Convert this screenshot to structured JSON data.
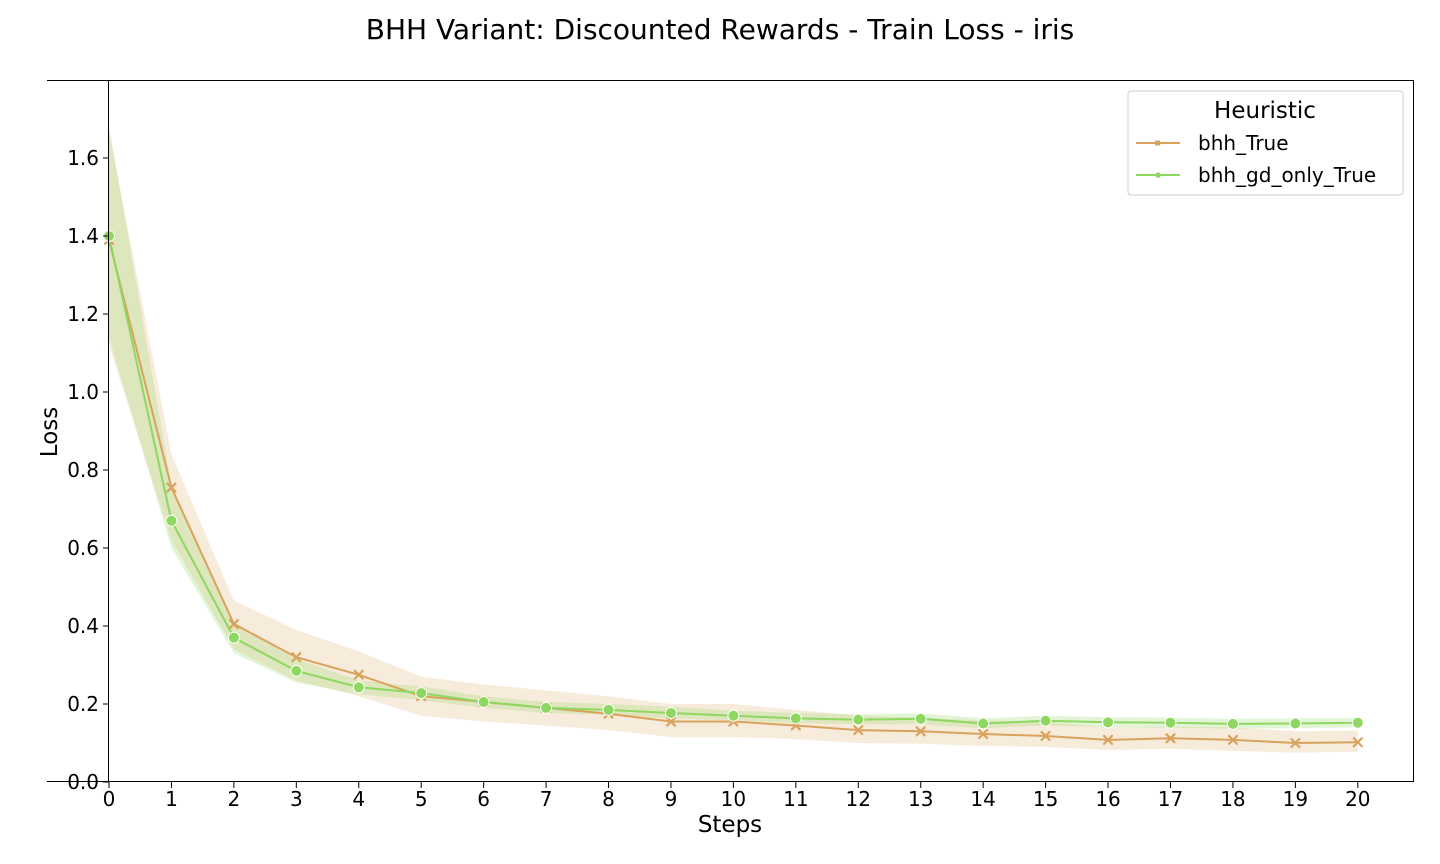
{
  "chart_data": {
    "type": "line",
    "title": "BHH Variant: Discounted Rewards - Train Loss - iris",
    "xlabel": "Steps",
    "ylabel": "Loss",
    "x": [
      0,
      1,
      2,
      3,
      4,
      5,
      6,
      7,
      8,
      9,
      10,
      11,
      12,
      13,
      14,
      15,
      16,
      17,
      18,
      19,
      20
    ],
    "x_tick_labels": [
      "0",
      "1",
      "2",
      "3",
      "4",
      "5",
      "6",
      "7",
      "8",
      "9",
      "10",
      "11",
      "12",
      "13",
      "14",
      "15",
      "16",
      "17",
      "18",
      "19",
      "20"
    ],
    "xlim": [
      0,
      20.9
    ],
    "ylim": [
      0,
      1.8
    ],
    "y_ticks": [
      0.0,
      0.2,
      0.4,
      0.6,
      0.8,
      1.0,
      1.2,
      1.4,
      1.6
    ],
    "y_tick_labels": [
      "0.0",
      "0.2",
      "0.4",
      "0.6",
      "0.8",
      "1.0",
      "1.2",
      "1.4",
      "1.6"
    ],
    "grid": false,
    "legend": {
      "title": "Heuristic",
      "position": "top-right"
    },
    "series": [
      {
        "name": "bhh_True",
        "color": "#d9a35e",
        "marker": "x",
        "values": [
          1.39,
          0.755,
          0.405,
          0.32,
          0.275,
          0.22,
          0.205,
          0.19,
          0.175,
          0.155,
          0.155,
          0.145,
          0.133,
          0.13,
          0.123,
          0.118,
          0.108,
          0.112,
          0.108,
          0.1,
          0.102
        ],
        "ci_lower": [
          1.12,
          0.62,
          0.34,
          0.26,
          0.22,
          0.17,
          0.155,
          0.145,
          0.133,
          0.115,
          0.115,
          0.11,
          0.1,
          0.098,
          0.092,
          0.09,
          0.082,
          0.085,
          0.08,
          0.075,
          0.078
        ],
        "ci_upper": [
          1.67,
          0.84,
          0.465,
          0.39,
          0.335,
          0.27,
          0.25,
          0.235,
          0.22,
          0.2,
          0.2,
          0.185,
          0.17,
          0.165,
          0.158,
          0.155,
          0.14,
          0.142,
          0.14,
          0.13,
          0.132
        ]
      },
      {
        "name": "bhh_gd_only_True",
        "color": "#8ed760",
        "marker": "o",
        "values": [
          1.4,
          0.67,
          0.37,
          0.285,
          0.243,
          0.228,
          0.205,
          0.19,
          0.185,
          0.177,
          0.17,
          0.163,
          0.16,
          0.162,
          0.15,
          0.157,
          0.153,
          0.152,
          0.149,
          0.15,
          0.152
        ],
        "ci_lower": [
          1.14,
          0.6,
          0.33,
          0.255,
          0.225,
          0.21,
          0.19,
          0.177,
          0.172,
          0.163,
          0.158,
          0.151,
          0.148,
          0.148,
          0.138,
          0.145,
          0.141,
          0.139,
          0.137,
          0.138,
          0.14
        ],
        "ci_upper": [
          1.68,
          0.76,
          0.41,
          0.315,
          0.26,
          0.245,
          0.22,
          0.205,
          0.2,
          0.193,
          0.183,
          0.177,
          0.174,
          0.176,
          0.163,
          0.17,
          0.166,
          0.165,
          0.162,
          0.163,
          0.165
        ]
      }
    ]
  }
}
